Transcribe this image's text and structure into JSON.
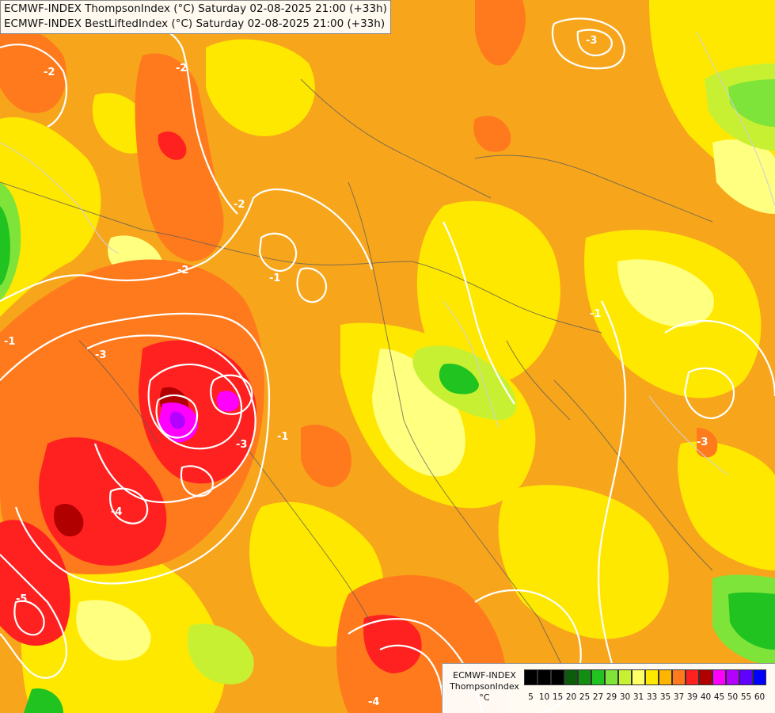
{
  "header": {
    "line1": "ECMWF-INDEX ThompsonIndex (°C) Saturday 02-08-2025 21:00 (+33h)",
    "line2": "ECMWF-INDEX BestLiftedIndex (°C) Saturday 02-08-2025 21:00 (+33h)"
  },
  "legend": {
    "title1": "ECMWF-INDEX",
    "title2": "ThompsonIndex",
    "unit": "°C",
    "bins": [
      {
        "label": "5",
        "color": "#000000"
      },
      {
        "label": "10",
        "color": "#000000"
      },
      {
        "label": "15",
        "color": "#000000"
      },
      {
        "label": "20",
        "color": "#0b5d0b"
      },
      {
        "label": "25",
        "color": "#138e13"
      },
      {
        "label": "27",
        "color": "#21c321"
      },
      {
        "label": "29",
        "color": "#7ee43a"
      },
      {
        "label": "30",
        "color": "#c8f033"
      },
      {
        "label": "31",
        "color": "#ffff66"
      },
      {
        "label": "33",
        "color": "#ffe800"
      },
      {
        "label": "35",
        "color": "#ffb400"
      },
      {
        "label": "37",
        "color": "#ff7a1c"
      },
      {
        "label": "39",
        "color": "#ff2020"
      },
      {
        "label": "40",
        "color": "#b00000"
      },
      {
        "label": "45",
        "color": "#ff00ff"
      },
      {
        "label": "50",
        "color": "#b400ff"
      },
      {
        "label": "55",
        "color": "#6000ff"
      },
      {
        "label": "60",
        "color": "#0000ff"
      }
    ]
  },
  "contours": {
    "labels": [
      "-2",
      "-2",
      "-2",
      "-2",
      "-3",
      "-3",
      "-3",
      "-1",
      "-1",
      "-4",
      "-5",
      "-3",
      "-4",
      "-1",
      "-1"
    ]
  }
}
